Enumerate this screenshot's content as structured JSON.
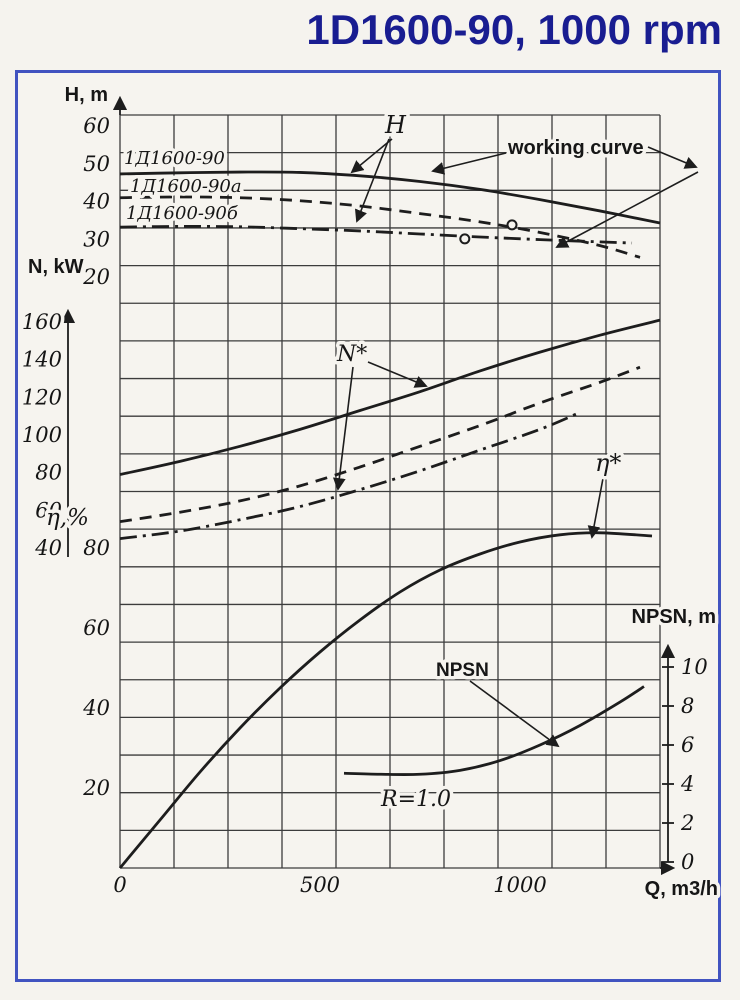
{
  "title": "1D1600-90, 1000 rpm",
  "labels": {
    "h_axis": "H, m",
    "n_axis": "N, kW",
    "eta_axis": "η,%",
    "npsh_axis": "NPSN, m",
    "q_axis": "Q, m3/h",
    "curve_h_main": "1Д1600-90",
    "curve_h_a": "1Д1600-90а",
    "curve_h_b": "1Д1600-90б",
    "h_pointer": "H",
    "working_curve": "working curve",
    "n_pointer": "N*",
    "eta_pointer": "η*",
    "npsh_pointer": "NPSN",
    "r_note": "R=1.0"
  },
  "colors": {
    "title": "#191d91",
    "frame_border": "#4153c0",
    "ink": "#1d1d1d",
    "paper": "#f6f4ef"
  },
  "chart_data": {
    "type": "line",
    "title": "1D1600-90, 1000 rpm",
    "xlabel": "Q, m3/h",
    "x_range": [
      0,
      1350
    ],
    "x_ticks": [
      0,
      500,
      1000
    ],
    "grid": true,
    "axes": [
      {
        "id": "H",
        "label": "H, m",
        "unit": "m",
        "range": [
          20,
          60
        ],
        "ticks": [
          60,
          50,
          40,
          30,
          20
        ],
        "side": "left"
      },
      {
        "id": "N",
        "label": "N, kW",
        "unit": "kW",
        "range": [
          40,
          160
        ],
        "ticks": [
          160,
          140,
          120,
          100,
          80,
          60,
          40
        ],
        "side": "left"
      },
      {
        "id": "eta",
        "label": "η,%",
        "unit": "%",
        "range": [
          0,
          80
        ],
        "ticks": [
          80,
          60,
          40,
          20
        ],
        "side": "left"
      },
      {
        "id": "npsh",
        "label": "NPSN, m",
        "unit": "m",
        "range": [
          0,
          10
        ],
        "ticks": [
          10,
          8,
          6,
          4,
          2,
          0
        ],
        "side": "right"
      }
    ],
    "series": [
      {
        "name": "1Д1600-90 H",
        "axis": "H",
        "style": "solid",
        "points": [
          [
            0,
            47.3
          ],
          [
            150,
            47.6
          ],
          [
            300,
            47.8
          ],
          [
            450,
            47.7
          ],
          [
            600,
            46.8
          ],
          [
            750,
            45.3
          ],
          [
            900,
            43.2
          ],
          [
            1050,
            40.5
          ],
          [
            1200,
            37.5
          ],
          [
            1350,
            34.3
          ]
        ]
      },
      {
        "name": "1Д1600-90а H",
        "axis": "H",
        "style": "dashed",
        "points": [
          [
            0,
            41.0
          ],
          [
            150,
            41.2
          ],
          [
            300,
            41.0
          ],
          [
            450,
            40.2
          ],
          [
            600,
            38.8
          ],
          [
            750,
            36.8
          ],
          [
            900,
            34.6
          ],
          [
            1050,
            31.8
          ],
          [
            1200,
            28.3
          ],
          [
            1300,
            25.2
          ]
        ]
      },
      {
        "name": "1Д1600-90б H",
        "axis": "H",
        "style": "dashdot",
        "points": [
          [
            0,
            33.2
          ],
          [
            150,
            33.4
          ],
          [
            300,
            33.3
          ],
          [
            450,
            32.8
          ],
          [
            600,
            32.2
          ],
          [
            750,
            31.4
          ],
          [
            900,
            30.6
          ],
          [
            1050,
            29.9
          ],
          [
            1200,
            29.3
          ],
          [
            1280,
            29.0
          ]
        ]
      },
      {
        "name": "1Д1600-90 N",
        "axis": "N",
        "style": "solid",
        "points": [
          [
            0,
            79
          ],
          [
            150,
            86
          ],
          [
            300,
            94
          ],
          [
            450,
            103
          ],
          [
            600,
            113
          ],
          [
            750,
            123
          ],
          [
            900,
            134
          ],
          [
            1050,
            144
          ],
          [
            1200,
            153
          ],
          [
            1350,
            161
          ]
        ]
      },
      {
        "name": "1Д1600-90а N",
        "axis": "N",
        "style": "dashed",
        "points": [
          [
            0,
            54
          ],
          [
            150,
            59
          ],
          [
            300,
            65
          ],
          [
            450,
            73
          ],
          [
            600,
            83
          ],
          [
            750,
            94
          ],
          [
            900,
            105
          ],
          [
            1050,
            117
          ],
          [
            1200,
            128
          ],
          [
            1300,
            136
          ]
        ]
      },
      {
        "name": "1Д1600-90б N",
        "axis": "N",
        "style": "dashdot",
        "points": [
          [
            0,
            45
          ],
          [
            150,
            49
          ],
          [
            300,
            55
          ],
          [
            450,
            62
          ],
          [
            600,
            71
          ],
          [
            750,
            81
          ],
          [
            900,
            92
          ],
          [
            1050,
            103
          ],
          [
            1150,
            112
          ]
        ]
      },
      {
        "name": "η",
        "axis": "eta",
        "style": "solid",
        "points": [
          [
            0,
            0
          ],
          [
            100,
            12
          ],
          [
            200,
            24
          ],
          [
            300,
            35
          ],
          [
            400,
            45
          ],
          [
            500,
            54
          ],
          [
            600,
            62
          ],
          [
            700,
            69
          ],
          [
            800,
            74.5
          ],
          [
            900,
            78.5
          ],
          [
            1000,
            81.5
          ],
          [
            1100,
            83.3
          ],
          [
            1200,
            83.8
          ],
          [
            1330,
            83.0
          ]
        ]
      },
      {
        "name": "NPSN (R=1.0)",
        "axis": "npsh",
        "style": "solid",
        "points": [
          [
            560,
            4.55
          ],
          [
            650,
            4.5
          ],
          [
            750,
            4.5
          ],
          [
            850,
            4.7
          ],
          [
            950,
            5.2
          ],
          [
            1050,
            6.0
          ],
          [
            1150,
            7.0
          ],
          [
            1250,
            8.2
          ],
          [
            1310,
            9.0
          ]
        ]
      }
    ],
    "markers": [
      {
        "axis": "H",
        "q": 980,
        "v": 33.8
      },
      {
        "axis": "H",
        "q": 862,
        "v": 30.1
      }
    ]
  }
}
